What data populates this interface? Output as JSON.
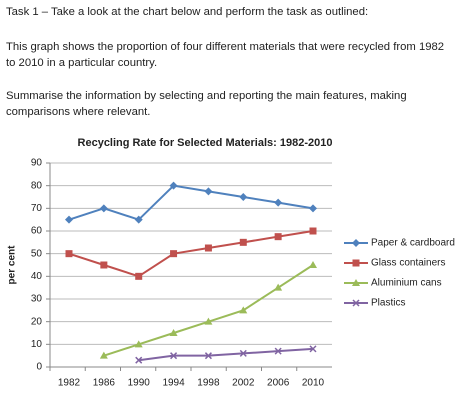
{
  "task_heading": "Task 1 – Take a look at the chart below and perform the task as outlined:",
  "paragraphs": [
    "This graph shows the proportion of four different materials that were recycled from 1982 to 2010 in a particular country.",
    "Summarise the information by selecting and reporting the main features, making comparisons where relevant."
  ],
  "chart_data": {
    "type": "line",
    "title": "Recycling Rate for Selected Materials: 1982-2010",
    "y_label": "per cent",
    "categories": [
      "1982",
      "1986",
      "1990",
      "1994",
      "1998",
      "2002",
      "2006",
      "2010"
    ],
    "ylim": [
      0,
      90
    ],
    "yticks": [
      0,
      10,
      20,
      30,
      40,
      50,
      60,
      70,
      80,
      90
    ],
    "grid": true,
    "legend": "right",
    "series": [
      {
        "name": "Paper & cardboard",
        "color": "#4f81bd",
        "marker": "diamond",
        "values": [
          65,
          70,
          65,
          80,
          77.5,
          75,
          72.5,
          70
        ]
      },
      {
        "name": "Glass containers",
        "color": "#c0504d",
        "marker": "square",
        "values": [
          50,
          45,
          40,
          50,
          52.5,
          55,
          57.5,
          60
        ]
      },
      {
        "name": "Aluminium cans",
        "color": "#9bbb59",
        "marker": "triangle",
        "values": [
          null,
          5,
          10,
          15,
          20,
          25,
          35,
          45
        ]
      },
      {
        "name": "Plastics",
        "color": "#8064a2",
        "marker": "x",
        "values": [
          null,
          null,
          3,
          5,
          5,
          6,
          7,
          8
        ]
      }
    ]
  }
}
